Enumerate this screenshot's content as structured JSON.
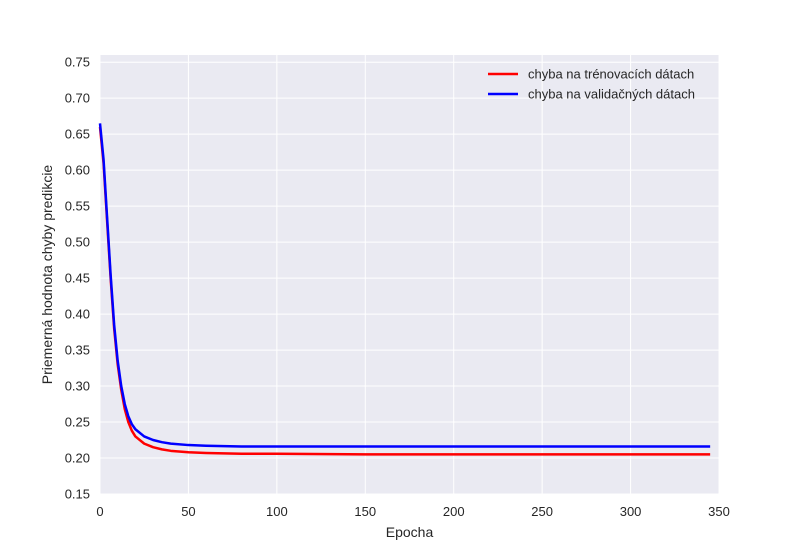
{
  "chart_data": {
    "type": "line",
    "title": "",
    "xlabel": "Epocha",
    "ylabel": "Priemerná hodnota chyby predikcie",
    "xlim": [
      0,
      350
    ],
    "ylim": [
      0.15,
      0.76
    ],
    "xticks": [
      0,
      50,
      100,
      150,
      200,
      250,
      300,
      350
    ],
    "yticks": [
      0.15,
      0.2,
      0.25,
      0.3,
      0.35,
      0.4,
      0.45,
      0.5,
      0.55,
      0.6,
      0.65,
      0.7,
      0.75
    ],
    "xtick_labels": [
      "0",
      "50",
      "100",
      "150",
      "200",
      "250",
      "300",
      "350"
    ],
    "ytick_labels": [
      "0.15",
      "0.20",
      "0.25",
      "0.30",
      "0.35",
      "0.40",
      "0.45",
      "0.50",
      "0.55",
      "0.60",
      "0.65",
      "0.70",
      "0.75"
    ],
    "grid": true,
    "background": "#EAEAF2",
    "legend_position": "top-right",
    "series": [
      {
        "name": "chyba na trénovacích dátach",
        "color": "#ff0000",
        "x": [
          0,
          2,
          4,
          6,
          8,
          10,
          12,
          14,
          16,
          18,
          20,
          25,
          30,
          35,
          40,
          50,
          60,
          80,
          100,
          150,
          200,
          250,
          300,
          345
        ],
        "values": [
          0.66,
          0.61,
          0.53,
          0.45,
          0.38,
          0.33,
          0.295,
          0.268,
          0.25,
          0.238,
          0.23,
          0.22,
          0.215,
          0.212,
          0.21,
          0.208,
          0.207,
          0.206,
          0.206,
          0.205,
          0.205,
          0.205,
          0.205,
          0.205
        ]
      },
      {
        "name": "chyba na validačných dátach",
        "color": "#0000ff",
        "x": [
          0,
          2,
          4,
          6,
          8,
          10,
          12,
          14,
          16,
          18,
          20,
          25,
          30,
          35,
          40,
          50,
          60,
          80,
          100,
          150,
          200,
          250,
          300,
          345
        ],
        "values": [
          0.665,
          0.615,
          0.535,
          0.455,
          0.385,
          0.335,
          0.3,
          0.275,
          0.258,
          0.247,
          0.24,
          0.23,
          0.225,
          0.222,
          0.22,
          0.218,
          0.217,
          0.216,
          0.216,
          0.216,
          0.216,
          0.216,
          0.216,
          0.216
        ]
      }
    ]
  }
}
